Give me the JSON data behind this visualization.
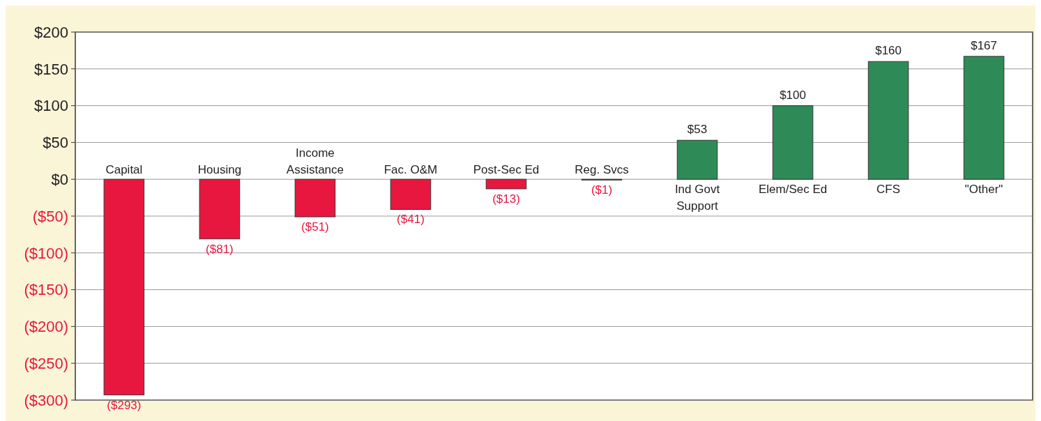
{
  "chart_data": {
    "type": "bar",
    "categories": [
      "Capital",
      "Housing",
      "Income\nAssistance",
      "Fac. O&M",
      "Post-Sec Ed",
      "Reg. Svcs",
      "Ind Govt\nSupport",
      "Elem/Sec Ed",
      "CFS",
      "\"Other\""
    ],
    "values": [
      -293,
      -81,
      -51,
      -41,
      -13,
      -1,
      53,
      100,
      160,
      167
    ],
    "colors": [
      "#e8173f",
      "#e8173f",
      "#e8173f",
      "#e8173f",
      "#e8173f",
      "#e8173f",
      "#2e8b57",
      "#2e8b57",
      "#2e8b57",
      "#2e8b57"
    ],
    "value_labels": [
      "($293)",
      "($81)",
      "($51)",
      "($41)",
      "($13)",
      "($1)",
      "$53",
      "$100",
      "$160",
      "$167"
    ],
    "ylim": [
      -300,
      200
    ],
    "yticks": [
      {
        "value": 200,
        "label": "$200"
      },
      {
        "value": 150,
        "label": "$150"
      },
      {
        "value": 100,
        "label": "$100"
      },
      {
        "value": 50,
        "label": "$50"
      },
      {
        "value": 0,
        "label": "$0"
      },
      {
        "value": -50,
        "label": "($50)"
      },
      {
        "value": -100,
        "label": "($100)"
      },
      {
        "value": -150,
        "label": "($150)"
      },
      {
        "value": -200,
        "label": "($200)"
      },
      {
        "value": -250,
        "label": "($250)"
      },
      {
        "value": -300,
        "label": "($300)"
      }
    ],
    "grid": "y"
  }
}
